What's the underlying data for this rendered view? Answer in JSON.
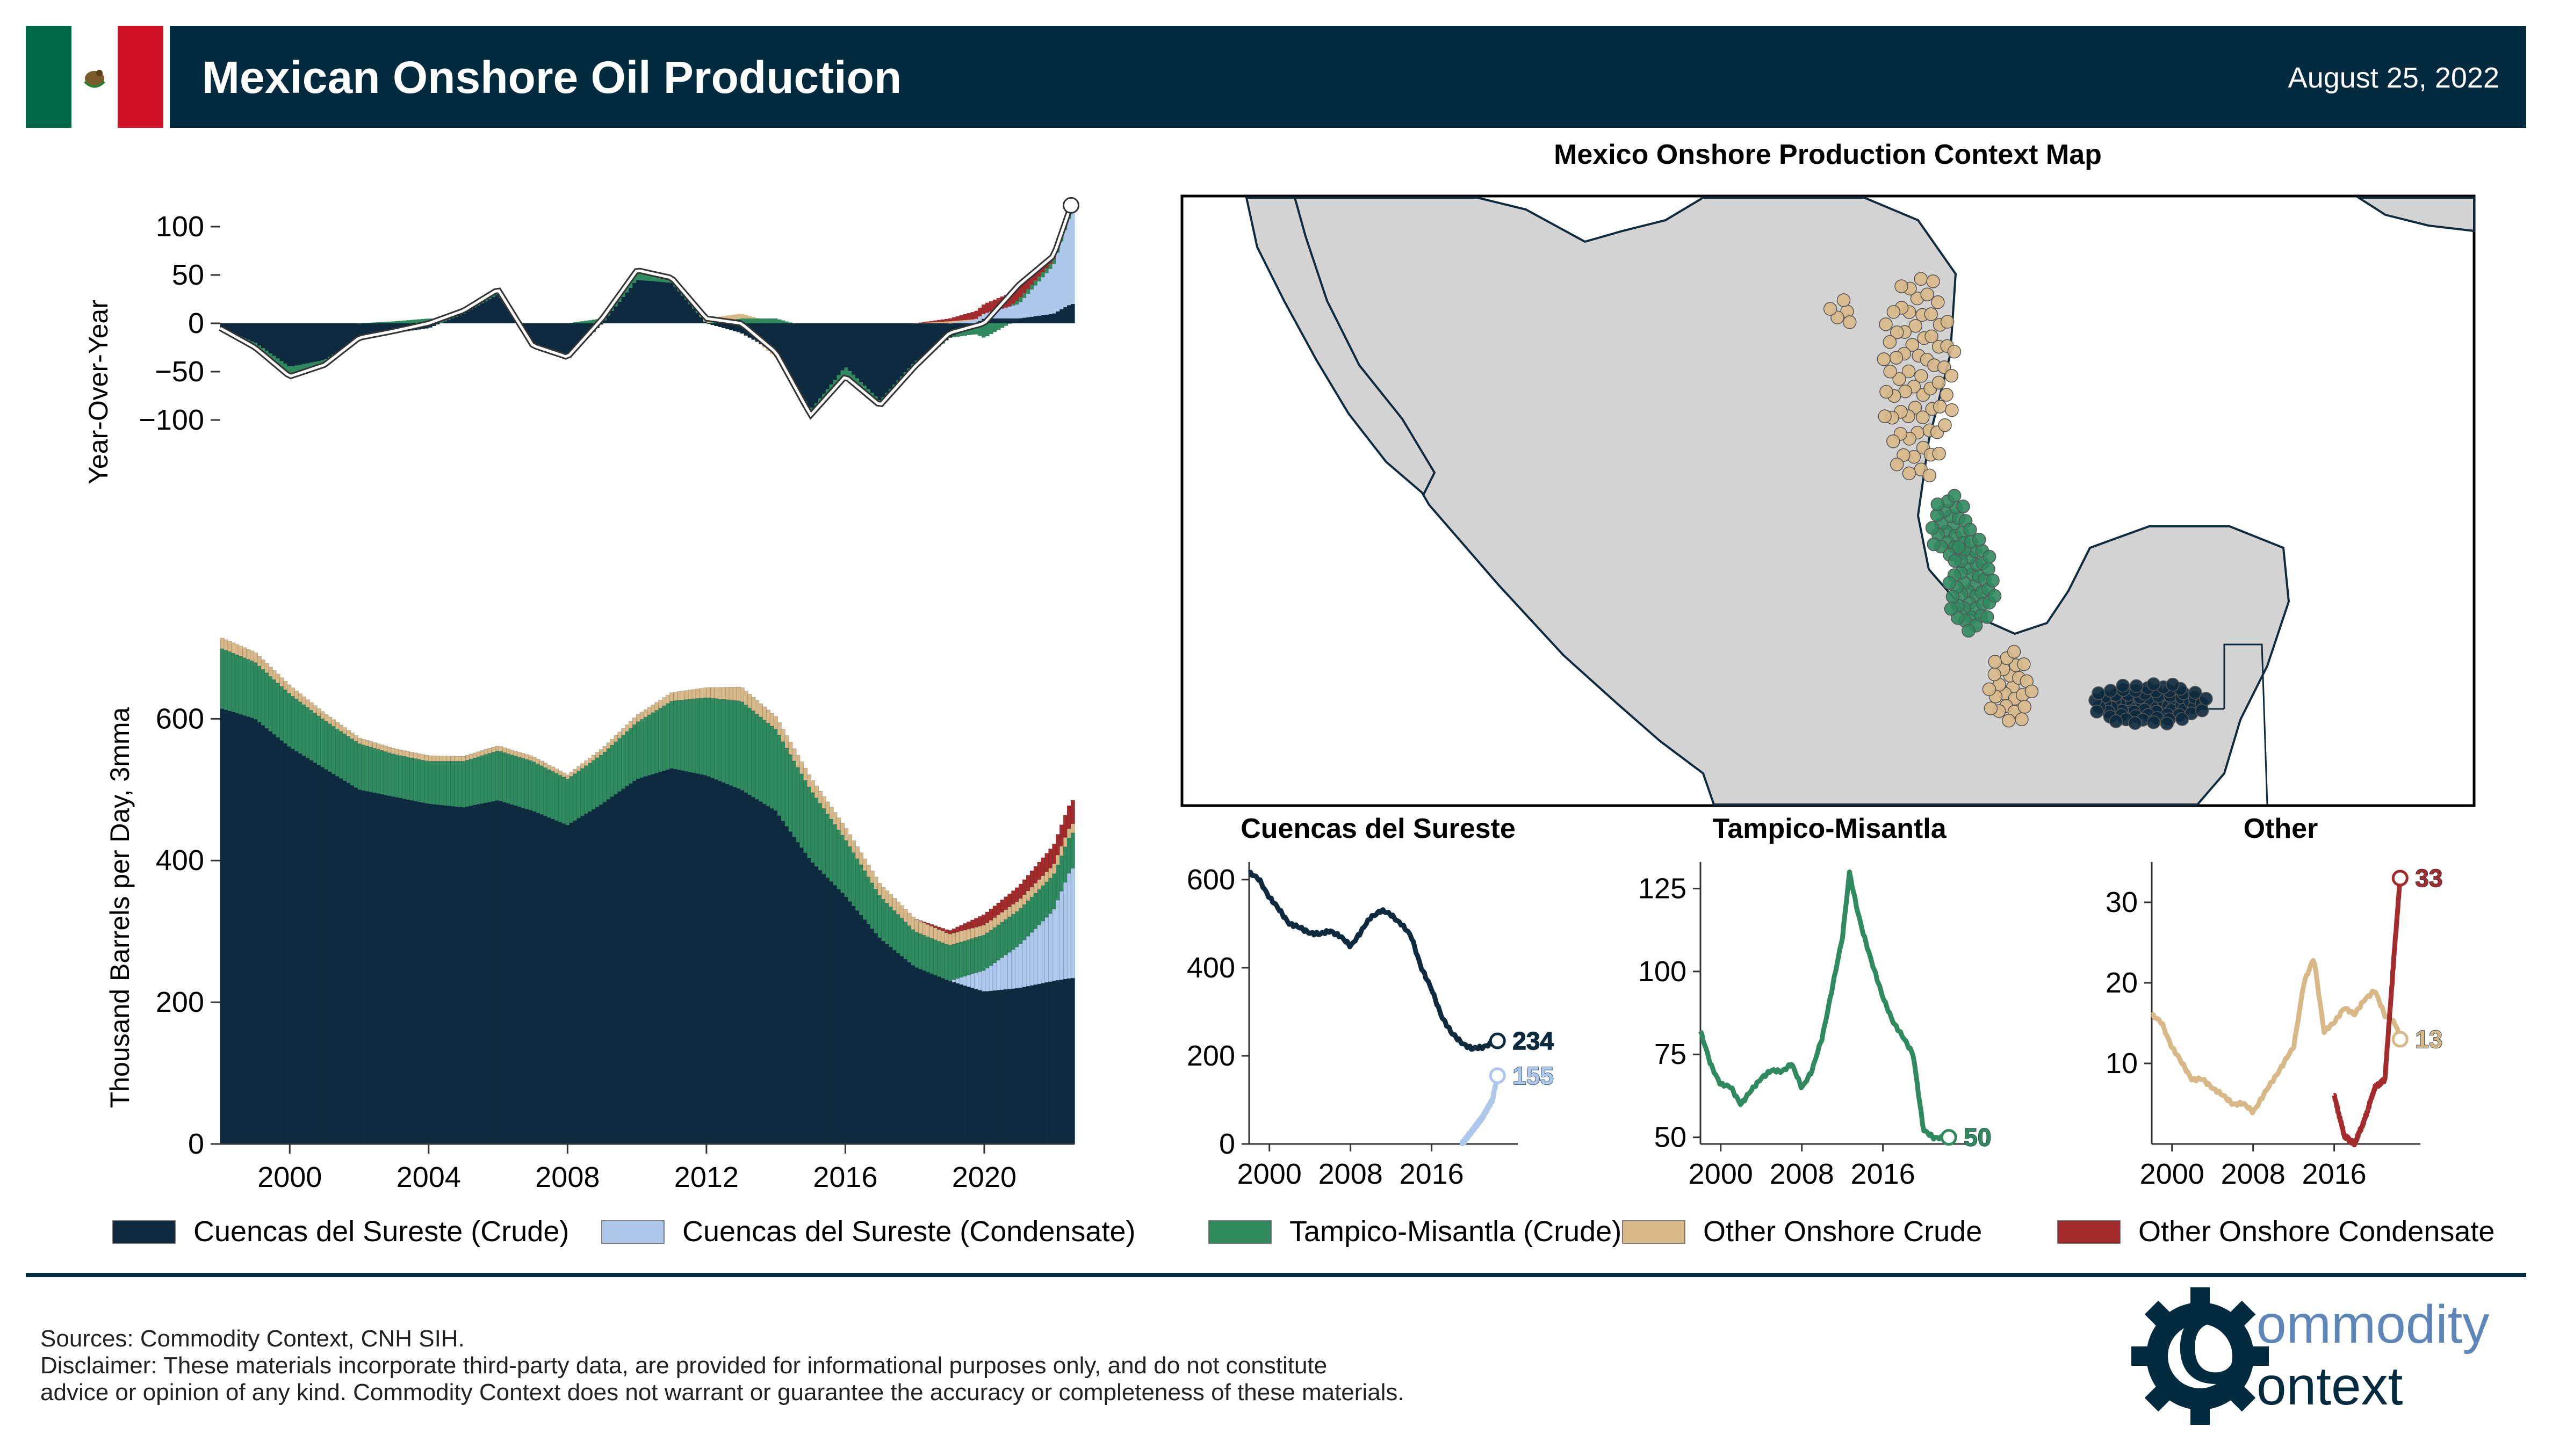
{
  "header": {
    "title": "Mexican Onshore Oil Production",
    "date": "August 25, 2022"
  },
  "colors": {
    "header_bg": "#022b40",
    "cds_crude": "#0d2a3e",
    "cds_condensate": "#aec8ec",
    "tampico": "#2f8a5e",
    "other_crude": "#d8b887",
    "other_condensate": "#a32b2b",
    "land": "#d3d3d3"
  },
  "map": {
    "title": "Mexico Onshore Production Context Map"
  },
  "legend": [
    {
      "label": "Cuencas del Sureste (Crude)",
      "color": "#0d2a3e"
    },
    {
      "label": "Cuencas del Sureste (Condensate)",
      "color": "#aec8ec"
    },
    {
      "label": "Tampico-Misantla (Crude)",
      "color": "#2f8a5e"
    },
    {
      "label": "Other Onshore Crude",
      "color": "#d8b887"
    },
    {
      "label": "Other Onshore Condensate",
      "color": "#a32b2b"
    }
  ],
  "footer": {
    "sources": "Sources: Commodity Context, CNH SIH.",
    "disclaimer_line1": "Disclaimer: These materials incorporate third-party data, are provided for informational purposes only, and do not constitute",
    "disclaimer_line2": "advice or opinion of any kind. Commodity Context does not warrant or guarantee the accuracy or completeness of these materials.",
    "logo_top": "ommodity",
    "logo_bottom": "ontext",
    "logo_letter": "C"
  },
  "chart_data": [
    {
      "id": "yoy",
      "type": "bar",
      "title": "",
      "xlabel": "",
      "ylabel": "Year-Over-Year",
      "xlim": [
        1998,
        2022.6
      ],
      "ylim": [
        -110,
        140
      ],
      "yticks": [
        100,
        50,
        0,
        -50,
        -100
      ],
      "ytick_labels": [
        "100",
        "50",
        "0",
        "−50",
        "−100"
      ],
      "x": [
        1998,
        1999,
        2000,
        2001,
        2002,
        2003,
        2004,
        2005,
        2006,
        2007,
        2008,
        2009,
        2010,
        2011,
        2012,
        2013,
        2014,
        2015,
        2016,
        2017,
        2018,
        2019,
        2020,
        2021,
        2022,
        2022.5
      ],
      "series": [
        {
          "name": "Cuencas del Sureste (Crude)",
          "values": [
            -5,
            -20,
            -45,
            -38,
            -15,
            -10,
            -5,
            10,
            30,
            -20,
            -35,
            0,
            45,
            42,
            0,
            -10,
            -30,
            -90,
            -45,
            -80,
            -40,
            -15,
            5,
            5,
            10,
            20
          ]
        },
        {
          "name": "Cuencas del Sureste (Condensate)",
          "values": [
            0,
            0,
            0,
            0,
            0,
            0,
            0,
            0,
            0,
            0,
            0,
            0,
            0,
            0,
            0,
            0,
            0,
            0,
            0,
            0,
            0,
            0,
            5,
            15,
            50,
            95
          ]
        },
        {
          "name": "Tampico-Misantla (Crude)",
          "values": [
            0,
            -5,
            -10,
            -5,
            0,
            2,
            5,
            3,
            5,
            -3,
            0,
            5,
            10,
            5,
            0,
            5,
            5,
            -5,
            -10,
            -5,
            -5,
            0,
            -15,
            5,
            5,
            5
          ]
        },
        {
          "name": "Other Onshore Crude",
          "values": [
            0,
            0,
            0,
            0,
            0,
            0,
            0,
            0,
            0,
            0,
            0,
            0,
            0,
            0,
            5,
            5,
            -5,
            0,
            0,
            0,
            0,
            2,
            0,
            0,
            0,
            0
          ]
        },
        {
          "name": "Other Onshore Condensate",
          "values": [
            0,
            0,
            0,
            0,
            0,
            0,
            0,
            0,
            0,
            0,
            0,
            0,
            0,
            0,
            0,
            0,
            0,
            0,
            0,
            0,
            0,
            3,
            10,
            15,
            5,
            2
          ]
        }
      ],
      "total": [
        -5,
        -25,
        -55,
        -43,
        -15,
        -8,
        0,
        13,
        35,
        -23,
        -35,
        5,
        55,
        47,
        5,
        0,
        -30,
        -95,
        -55,
        -85,
        -45,
        -10,
        0,
        40,
        70,
        122
      ]
    },
    {
      "id": "total_stack",
      "type": "area",
      "title": "",
      "xlabel": "",
      "ylabel": "Thousand Barrels per Day, 3mma",
      "xlim": [
        1998,
        2022.6
      ],
      "ylim": [
        0,
        720
      ],
      "yticks": [
        0,
        200,
        400,
        600
      ],
      "xticks": [
        2000,
        2004,
        2008,
        2012,
        2016,
        2020
      ],
      "x": [
        1998,
        1999,
        2000,
        2001,
        2002,
        2003,
        2004,
        2005,
        2006,
        2007,
        2008,
        2009,
        2010,
        2011,
        2012,
        2013,
        2014,
        2015,
        2016,
        2017,
        2018,
        2019,
        2020,
        2021,
        2022,
        2022.5
      ],
      "series": [
        {
          "name": "Cuencas del Sureste (Crude)",
          "values": [
            615,
            600,
            560,
            530,
            500,
            490,
            480,
            475,
            485,
            470,
            450,
            480,
            515,
            530,
            520,
            500,
            470,
            400,
            350,
            290,
            250,
            230,
            215,
            220,
            230,
            234
          ]
        },
        {
          "name": "Cuencas del Sureste (Condensate)",
          "values": [
            0,
            0,
            0,
            0,
            0,
            0,
            0,
            0,
            0,
            0,
            0,
            0,
            0,
            0,
            0,
            0,
            0,
            0,
            0,
            0,
            0,
            0,
            30,
            60,
            100,
            155
          ]
        },
        {
          "name": "Tampico-Misantla (Crude)",
          "values": [
            85,
            80,
            75,
            68,
            65,
            60,
            60,
            65,
            70,
            70,
            65,
            70,
            80,
            95,
            110,
            125,
            115,
            100,
            80,
            60,
            50,
            50,
            50,
            50,
            50,
            50
          ]
        },
        {
          "name": "Other Onshore Crude",
          "values": [
            15,
            14,
            12,
            10,
            8,
            8,
            8,
            7,
            7,
            7,
            6,
            8,
            10,
            12,
            14,
            20,
            18,
            17,
            17,
            17,
            18,
            16,
            14,
            14,
            14,
            13
          ]
        },
        {
          "name": "Other Onshore Condensate",
          "values": [
            0,
            0,
            0,
            0,
            0,
            0,
            0,
            0,
            0,
            0,
            0,
            0,
            0,
            0,
            0,
            0,
            0,
            0,
            0,
            0,
            0,
            5,
            15,
            20,
            28,
            33
          ]
        }
      ]
    },
    {
      "id": "cuencas",
      "type": "line",
      "title": "Cuencas del Sureste",
      "xlim": [
        1998,
        2024.5
      ],
      "ylim": [
        0,
        640
      ],
      "yticks": [
        0,
        200,
        400,
        600
      ],
      "xticks": [
        2000,
        2008,
        2016
      ],
      "series": [
        {
          "name": "Cuencas del Sureste (Crude)",
          "color": "#0d2a3e",
          "x": [
            1998,
            1999,
            2000,
            2001,
            2002,
            2003,
            2004,
            2005,
            2006,
            2007,
            2008,
            2009,
            2010,
            2011,
            2012,
            2013,
            2014,
            2015,
            2016,
            2017,
            2018,
            2019,
            2020,
            2021,
            2022,
            2022.5
          ],
          "values": [
            615,
            600,
            560,
            530,
            500,
            490,
            480,
            475,
            485,
            470,
            450,
            480,
            515,
            530,
            520,
            500,
            470,
            400,
            350,
            290,
            250,
            230,
            215,
            220,
            230,
            234
          ],
          "end_label": "234"
        },
        {
          "name": "Cuencas del Sureste (Condensate)",
          "color": "#aec8ec",
          "x": [
            2019,
            2020,
            2021,
            2022,
            2022.5
          ],
          "values": [
            0,
            30,
            60,
            100,
            155
          ],
          "end_label": "155"
        }
      ]
    },
    {
      "id": "tampico",
      "type": "line",
      "title": "Tampico-Misantla",
      "xlim": [
        1998,
        2024.5
      ],
      "ylim": [
        48,
        133
      ],
      "yticks": [
        50,
        75,
        100,
        125
      ],
      "xticks": [
        2000,
        2008,
        2016
      ],
      "series": [
        {
          "name": "Tampico-Misantla (Crude)",
          "color": "#2f8a5e",
          "x": [
            1998,
            1999,
            2000,
            2001,
            2002,
            2003,
            2004,
            2005,
            2006,
            2007,
            2008,
            2009,
            2010,
            2011,
            2012,
            2012.7,
            2013.5,
            2014,
            2015,
            2016,
            2017,
            2018,
            2019,
            2020,
            2021,
            2022,
            2022.5
          ],
          "values": [
            82,
            72,
            66,
            65,
            60,
            64,
            68,
            70,
            70,
            72,
            65,
            70,
            80,
            95,
            110,
            130,
            118,
            112,
            102,
            92,
            85,
            80,
            75,
            52,
            50,
            50,
            50
          ],
          "end_label": "50"
        }
      ]
    },
    {
      "id": "other",
      "type": "line",
      "title": "Other",
      "xlim": [
        1998,
        2024.5
      ],
      "ylim": [
        0,
        35
      ],
      "yticks": [
        10,
        20,
        30
      ],
      "xticks": [
        2000,
        2008,
        2016
      ],
      "series": [
        {
          "name": "Other Onshore Crude",
          "color": "#d8b887",
          "x": [
            1998,
            1999,
            2000,
            2001,
            2002,
            2003,
            2004,
            2005,
            2006,
            2007,
            2008,
            2009,
            2010,
            2011,
            2012,
            2013,
            2014,
            2015,
            2016,
            2017,
            2018,
            2019,
            2020,
            2021,
            2022,
            2022.5
          ],
          "values": [
            16,
            15,
            12,
            10,
            8,
            8,
            7,
            6,
            5,
            5,
            4,
            6,
            8,
            10,
            12,
            20,
            23,
            14,
            15,
            17,
            16,
            18,
            19,
            16,
            15,
            13
          ],
          "end_label": "13"
        },
        {
          "name": "Other Onshore Condensate",
          "color": "#a32b2b",
          "x": [
            2016,
            2017,
            2018,
            2019,
            2020,
            2021,
            2022,
            2022.5
          ],
          "values": [
            6,
            1,
            0,
            3,
            7,
            8,
            25,
            33
          ],
          "end_label": "33"
        }
      ]
    }
  ]
}
